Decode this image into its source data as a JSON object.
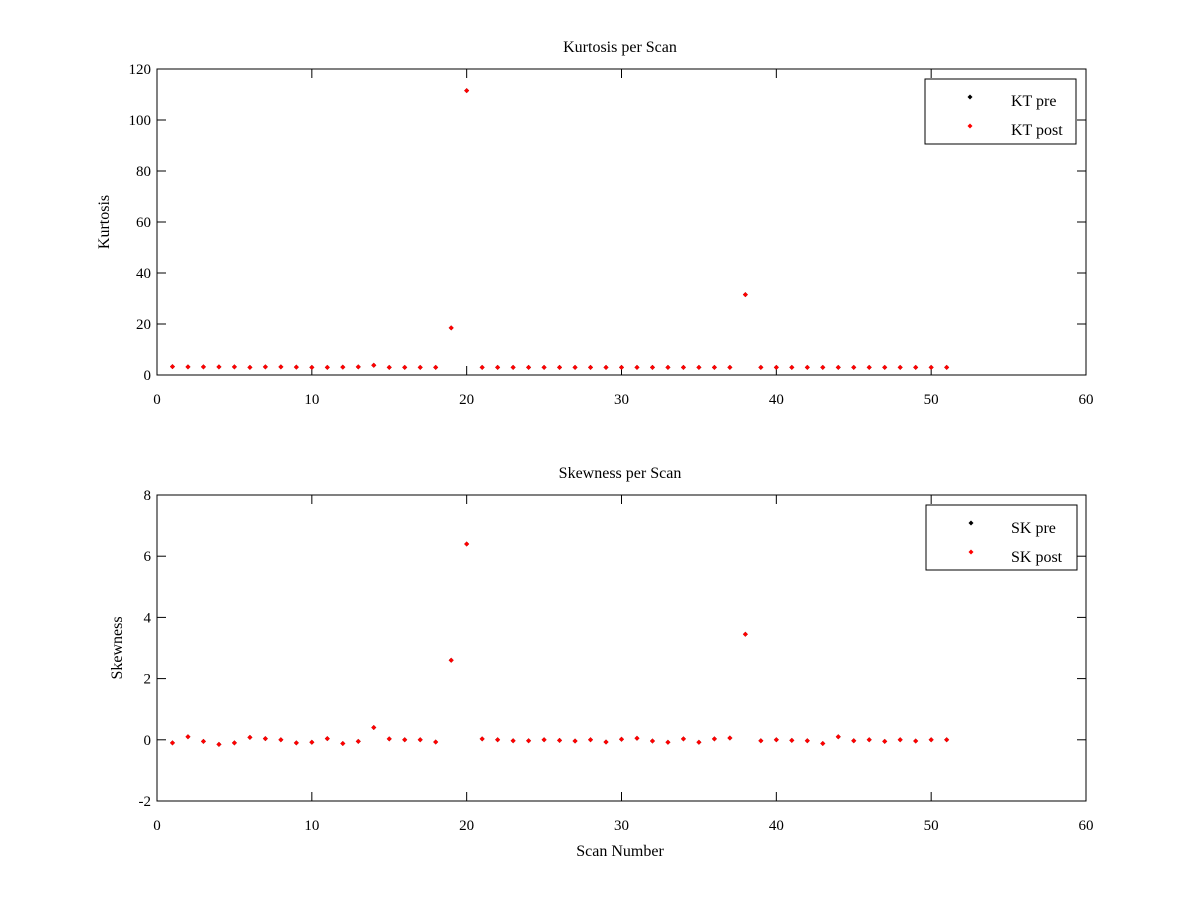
{
  "chart_data": [
    {
      "type": "scatter",
      "title": "Kurtosis per Scan",
      "xlabel": "",
      "ylabel": "Kurtosis",
      "xlim": [
        0,
        60
      ],
      "ylim": [
        0,
        120
      ],
      "xticks": [
        0,
        10,
        20,
        30,
        40,
        50,
        60
      ],
      "yticks": [
        0,
        20,
        40,
        60,
        80,
        100,
        120
      ],
      "grid": false,
      "legend_position": "top-right",
      "series": [
        {
          "name": "KT pre",
          "color": "#000000",
          "x": [
            1,
            2,
            3,
            4,
            5,
            6,
            7,
            8,
            9,
            10,
            11,
            12,
            13,
            14,
            15,
            16,
            17,
            18,
            19,
            20,
            21,
            22,
            23,
            24,
            25,
            26,
            27,
            28,
            29,
            30,
            31,
            32,
            33,
            34,
            35,
            36,
            37,
            38,
            39,
            40,
            41,
            42,
            43,
            44,
            45,
            46,
            47,
            48,
            49,
            50,
            51
          ],
          "y": [
            3.3,
            3.2,
            3.2,
            3.2,
            3.2,
            3.0,
            3.2,
            3.2,
            3.1,
            3.0,
            3.0,
            3.1,
            3.2,
            3.8,
            3.0,
            3.0,
            3.0,
            3.0,
            18.5,
            111.5,
            3.0,
            3.0,
            3.0,
            3.0,
            3.0,
            3.0,
            3.0,
            3.0,
            3.0,
            3.0,
            3.0,
            3.0,
            3.0,
            3.0,
            3.0,
            3.0,
            3.0,
            31.5,
            3.0,
            3.0,
            3.0,
            3.0,
            3.0,
            3.0,
            3.0,
            3.0,
            3.0,
            3.0,
            3.0,
            3.0,
            3.0
          ]
        },
        {
          "name": "KT post",
          "color": "#ff0000",
          "x": [
            1,
            2,
            3,
            4,
            5,
            6,
            7,
            8,
            9,
            10,
            11,
            12,
            13,
            14,
            15,
            16,
            17,
            18,
            19,
            20,
            21,
            22,
            23,
            24,
            25,
            26,
            27,
            28,
            29,
            30,
            31,
            32,
            33,
            34,
            35,
            36,
            37,
            38,
            39,
            40,
            41,
            42,
            43,
            44,
            45,
            46,
            47,
            48,
            49,
            50,
            51
          ],
          "y": [
            3.3,
            3.2,
            3.2,
            3.2,
            3.2,
            3.0,
            3.2,
            3.2,
            3.1,
            3.0,
            3.0,
            3.1,
            3.2,
            3.8,
            3.0,
            3.0,
            3.0,
            3.0,
            18.5,
            111.5,
            3.0,
            3.0,
            3.0,
            3.0,
            3.0,
            3.0,
            3.0,
            3.0,
            3.0,
            3.0,
            3.0,
            3.0,
            3.0,
            3.0,
            3.0,
            3.0,
            3.0,
            31.5,
            3.0,
            3.0,
            3.0,
            3.0,
            3.0,
            3.0,
            3.0,
            3.0,
            3.0,
            3.0,
            3.0,
            3.0,
            3.0
          ]
        }
      ]
    },
    {
      "type": "scatter",
      "title": "Skewness per Scan",
      "xlabel": "Scan Number",
      "ylabel": "Skewness",
      "xlim": [
        0,
        60
      ],
      "ylim": [
        -2,
        8
      ],
      "xticks": [
        0,
        10,
        20,
        30,
        40,
        50,
        60
      ],
      "yticks": [
        -2,
        0,
        2,
        4,
        6,
        8
      ],
      "grid": false,
      "legend_position": "top-right",
      "series": [
        {
          "name": "SK pre",
          "color": "#000000",
          "x": [
            1,
            2,
            3,
            4,
            5,
            6,
            7,
            8,
            9,
            10,
            11,
            12,
            13,
            14,
            15,
            16,
            17,
            18,
            19,
            20,
            21,
            22,
            23,
            24,
            25,
            26,
            27,
            28,
            29,
            30,
            31,
            32,
            33,
            34,
            35,
            36,
            37,
            38,
            39,
            40,
            41,
            42,
            43,
            44,
            45,
            46,
            47,
            48,
            49,
            50,
            51
          ],
          "y": [
            -0.1,
            0.1,
            -0.05,
            -0.15,
            -0.1,
            0.08,
            0.04,
            0.0,
            -0.1,
            -0.08,
            0.04,
            -0.12,
            -0.05,
            0.4,
            0.03,
            0.0,
            0.0,
            -0.07,
            2.6,
            6.4,
            0.03,
            0.0,
            -0.03,
            -0.03,
            0.0,
            -0.02,
            -0.04,
            0.0,
            -0.07,
            0.02,
            0.05,
            -0.04,
            -0.08,
            0.03,
            -0.08,
            0.03,
            0.06,
            3.45,
            -0.03,
            0.0,
            -0.02,
            -0.03,
            -0.12,
            0.1,
            -0.03,
            0.0,
            -0.05,
            0.0,
            -0.04,
            0.0,
            0.0
          ]
        },
        {
          "name": "SK post",
          "color": "#ff0000",
          "x": [
            1,
            2,
            3,
            4,
            5,
            6,
            7,
            8,
            9,
            10,
            11,
            12,
            13,
            14,
            15,
            16,
            17,
            18,
            19,
            20,
            21,
            22,
            23,
            24,
            25,
            26,
            27,
            28,
            29,
            30,
            31,
            32,
            33,
            34,
            35,
            36,
            37,
            38,
            39,
            40,
            41,
            42,
            43,
            44,
            45,
            46,
            47,
            48,
            49,
            50,
            51
          ],
          "y": [
            -0.1,
            0.1,
            -0.05,
            -0.15,
            -0.1,
            0.08,
            0.04,
            0.0,
            -0.1,
            -0.08,
            0.04,
            -0.12,
            -0.05,
            0.4,
            0.03,
            0.0,
            0.0,
            -0.07,
            2.6,
            6.4,
            0.03,
            0.0,
            -0.03,
            -0.03,
            0.0,
            -0.02,
            -0.04,
            0.0,
            -0.07,
            0.02,
            0.05,
            -0.04,
            -0.08,
            0.03,
            -0.08,
            0.03,
            0.06,
            3.45,
            -0.03,
            0.0,
            -0.02,
            -0.03,
            -0.12,
            0.1,
            -0.03,
            0.0,
            -0.05,
            0.0,
            -0.04,
            0.0,
            0.0
          ]
        }
      ]
    }
  ]
}
